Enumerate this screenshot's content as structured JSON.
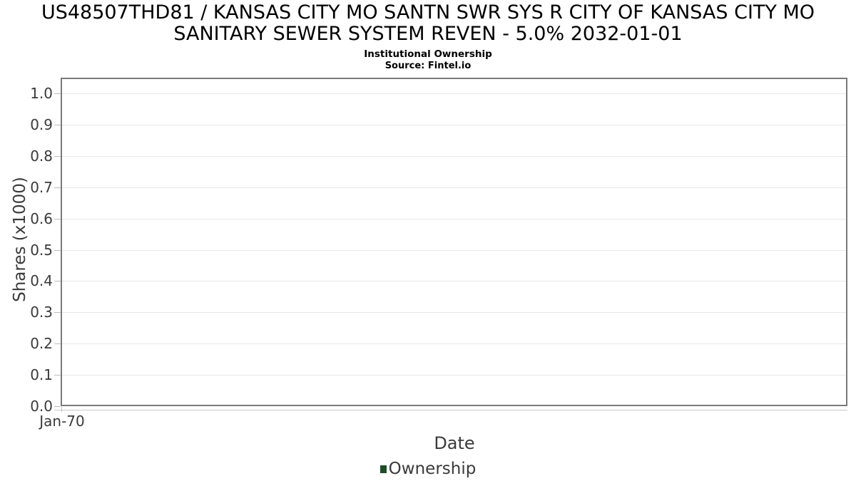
{
  "chart_data": {
    "type": "line",
    "title": "US48507THD81 / KANSAS CITY MO SANTN SWR SYS R CITY OF KANSAS CITY MO SANITARY SEWER SYSTEM REVEN - 5.0% 2032-01-01",
    "title_line1": "US48507THD81 / KANSAS CITY MO SANTN SWR SYS R CITY OF KANSAS CITY MO",
    "title_line2": "SANITARY SEWER SYSTEM REVEN - 5.0% 2032-01-01",
    "subtitle": "Institutional Ownership",
    "source": "Source: Fintel.io",
    "xlabel": "Date",
    "ylabel": "Shares (x1000)",
    "x_ticks": [
      "Jan-70"
    ],
    "y_ticks": [
      "0.0",
      "0.1",
      "0.2",
      "0.3",
      "0.4",
      "0.5",
      "0.6",
      "0.7",
      "0.8",
      "0.9",
      "1.0"
    ],
    "ylim": [
      0.0,
      1.05
    ],
    "grid": true,
    "legend_position": "bottom",
    "series": [
      {
        "name": "Ownership",
        "color": "#1e4d2b",
        "x": [],
        "values": []
      }
    ]
  }
}
